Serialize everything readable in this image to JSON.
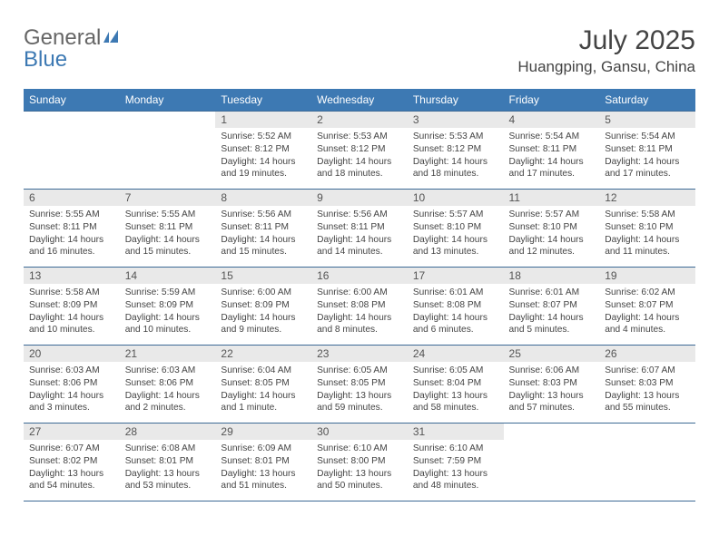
{
  "logo": {
    "text_left": "General",
    "text_right": "Blue"
  },
  "header": {
    "month_title": "July 2025",
    "location": "Huangping, Gansu, China"
  },
  "colors": {
    "header_bar": "#3d79b3",
    "header_text": "#ffffff",
    "daynum_bg": "#e9e9e9",
    "row_border": "#3d6a95",
    "body_text": "#444444",
    "logo_gray": "#666666",
    "logo_blue": "#3d79b3"
  },
  "weekdays": [
    "Sunday",
    "Monday",
    "Tuesday",
    "Wednesday",
    "Thursday",
    "Friday",
    "Saturday"
  ],
  "weeks": [
    [
      {
        "empty": true
      },
      {
        "empty": true
      },
      {
        "day": "1",
        "sunrise": "Sunrise: 5:52 AM",
        "sunset": "Sunset: 8:12 PM",
        "day1": "Daylight: 14 hours",
        "day2": "and 19 minutes."
      },
      {
        "day": "2",
        "sunrise": "Sunrise: 5:53 AM",
        "sunset": "Sunset: 8:12 PM",
        "day1": "Daylight: 14 hours",
        "day2": "and 18 minutes."
      },
      {
        "day": "3",
        "sunrise": "Sunrise: 5:53 AM",
        "sunset": "Sunset: 8:12 PM",
        "day1": "Daylight: 14 hours",
        "day2": "and 18 minutes."
      },
      {
        "day": "4",
        "sunrise": "Sunrise: 5:54 AM",
        "sunset": "Sunset: 8:11 PM",
        "day1": "Daylight: 14 hours",
        "day2": "and 17 minutes."
      },
      {
        "day": "5",
        "sunrise": "Sunrise: 5:54 AM",
        "sunset": "Sunset: 8:11 PM",
        "day1": "Daylight: 14 hours",
        "day2": "and 17 minutes."
      }
    ],
    [
      {
        "day": "6",
        "sunrise": "Sunrise: 5:55 AM",
        "sunset": "Sunset: 8:11 PM",
        "day1": "Daylight: 14 hours",
        "day2": "and 16 minutes."
      },
      {
        "day": "7",
        "sunrise": "Sunrise: 5:55 AM",
        "sunset": "Sunset: 8:11 PM",
        "day1": "Daylight: 14 hours",
        "day2": "and 15 minutes."
      },
      {
        "day": "8",
        "sunrise": "Sunrise: 5:56 AM",
        "sunset": "Sunset: 8:11 PM",
        "day1": "Daylight: 14 hours",
        "day2": "and 15 minutes."
      },
      {
        "day": "9",
        "sunrise": "Sunrise: 5:56 AM",
        "sunset": "Sunset: 8:11 PM",
        "day1": "Daylight: 14 hours",
        "day2": "and 14 minutes."
      },
      {
        "day": "10",
        "sunrise": "Sunrise: 5:57 AM",
        "sunset": "Sunset: 8:10 PM",
        "day1": "Daylight: 14 hours",
        "day2": "and 13 minutes."
      },
      {
        "day": "11",
        "sunrise": "Sunrise: 5:57 AM",
        "sunset": "Sunset: 8:10 PM",
        "day1": "Daylight: 14 hours",
        "day2": "and 12 minutes."
      },
      {
        "day": "12",
        "sunrise": "Sunrise: 5:58 AM",
        "sunset": "Sunset: 8:10 PM",
        "day1": "Daylight: 14 hours",
        "day2": "and 11 minutes."
      }
    ],
    [
      {
        "day": "13",
        "sunrise": "Sunrise: 5:58 AM",
        "sunset": "Sunset: 8:09 PM",
        "day1": "Daylight: 14 hours",
        "day2": "and 10 minutes."
      },
      {
        "day": "14",
        "sunrise": "Sunrise: 5:59 AM",
        "sunset": "Sunset: 8:09 PM",
        "day1": "Daylight: 14 hours",
        "day2": "and 10 minutes."
      },
      {
        "day": "15",
        "sunrise": "Sunrise: 6:00 AM",
        "sunset": "Sunset: 8:09 PM",
        "day1": "Daylight: 14 hours",
        "day2": "and 9 minutes."
      },
      {
        "day": "16",
        "sunrise": "Sunrise: 6:00 AM",
        "sunset": "Sunset: 8:08 PM",
        "day1": "Daylight: 14 hours",
        "day2": "and 8 minutes."
      },
      {
        "day": "17",
        "sunrise": "Sunrise: 6:01 AM",
        "sunset": "Sunset: 8:08 PM",
        "day1": "Daylight: 14 hours",
        "day2": "and 6 minutes."
      },
      {
        "day": "18",
        "sunrise": "Sunrise: 6:01 AM",
        "sunset": "Sunset: 8:07 PM",
        "day1": "Daylight: 14 hours",
        "day2": "and 5 minutes."
      },
      {
        "day": "19",
        "sunrise": "Sunrise: 6:02 AM",
        "sunset": "Sunset: 8:07 PM",
        "day1": "Daylight: 14 hours",
        "day2": "and 4 minutes."
      }
    ],
    [
      {
        "day": "20",
        "sunrise": "Sunrise: 6:03 AM",
        "sunset": "Sunset: 8:06 PM",
        "day1": "Daylight: 14 hours",
        "day2": "and 3 minutes."
      },
      {
        "day": "21",
        "sunrise": "Sunrise: 6:03 AM",
        "sunset": "Sunset: 8:06 PM",
        "day1": "Daylight: 14 hours",
        "day2": "and 2 minutes."
      },
      {
        "day": "22",
        "sunrise": "Sunrise: 6:04 AM",
        "sunset": "Sunset: 8:05 PM",
        "day1": "Daylight: 14 hours",
        "day2": "and 1 minute."
      },
      {
        "day": "23",
        "sunrise": "Sunrise: 6:05 AM",
        "sunset": "Sunset: 8:05 PM",
        "day1": "Daylight: 13 hours",
        "day2": "and 59 minutes."
      },
      {
        "day": "24",
        "sunrise": "Sunrise: 6:05 AM",
        "sunset": "Sunset: 8:04 PM",
        "day1": "Daylight: 13 hours",
        "day2": "and 58 minutes."
      },
      {
        "day": "25",
        "sunrise": "Sunrise: 6:06 AM",
        "sunset": "Sunset: 8:03 PM",
        "day1": "Daylight: 13 hours",
        "day2": "and 57 minutes."
      },
      {
        "day": "26",
        "sunrise": "Sunrise: 6:07 AM",
        "sunset": "Sunset: 8:03 PM",
        "day1": "Daylight: 13 hours",
        "day2": "and 55 minutes."
      }
    ],
    [
      {
        "day": "27",
        "sunrise": "Sunrise: 6:07 AM",
        "sunset": "Sunset: 8:02 PM",
        "day1": "Daylight: 13 hours",
        "day2": "and 54 minutes."
      },
      {
        "day": "28",
        "sunrise": "Sunrise: 6:08 AM",
        "sunset": "Sunset: 8:01 PM",
        "day1": "Daylight: 13 hours",
        "day2": "and 53 minutes."
      },
      {
        "day": "29",
        "sunrise": "Sunrise: 6:09 AM",
        "sunset": "Sunset: 8:01 PM",
        "day1": "Daylight: 13 hours",
        "day2": "and 51 minutes."
      },
      {
        "day": "30",
        "sunrise": "Sunrise: 6:10 AM",
        "sunset": "Sunset: 8:00 PM",
        "day1": "Daylight: 13 hours",
        "day2": "and 50 minutes."
      },
      {
        "day": "31",
        "sunrise": "Sunrise: 6:10 AM",
        "sunset": "Sunset: 7:59 PM",
        "day1": "Daylight: 13 hours",
        "day2": "and 48 minutes."
      },
      {
        "empty": true
      },
      {
        "empty": true
      }
    ]
  ]
}
